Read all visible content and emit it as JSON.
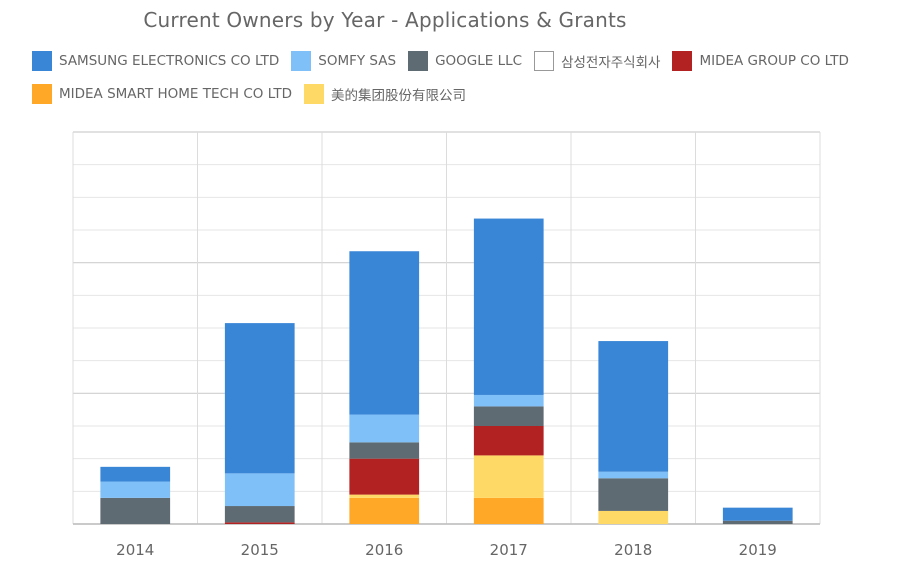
{
  "chart_data": {
    "type": "bar",
    "stacked": true,
    "title": "Current Owners by Year - Applications & Grants",
    "xlabel": "",
    "ylabel": "",
    "categories": [
      "2014",
      "2015",
      "2016",
      "2017",
      "2018",
      "2019"
    ],
    "ylim": [
      0,
      12
    ],
    "grid": true,
    "legend_position": "top",
    "series": [
      {
        "name": "MIDEA SMART HOME TECH CO LTD",
        "color": "#ffa726",
        "values": [
          0,
          0,
          0.8,
          0.8,
          0,
          0
        ]
      },
      {
        "name": "美的集团股份有限公司",
        "color": "#ffd966",
        "values": [
          0,
          0,
          0.1,
          1.3,
          0.4,
          0
        ]
      },
      {
        "name": "MIDEA GROUP CO LTD",
        "color": "#b22222",
        "values": [
          0,
          0.05,
          1.1,
          0.9,
          0,
          0
        ]
      },
      {
        "name": "GOOGLE LLC",
        "color": "#5f6b73",
        "values": [
          0.8,
          0.5,
          0.5,
          0.6,
          1.0,
          0.1
        ]
      },
      {
        "name": "삼성전자주식회사",
        "color": "#ffffff",
        "values": [
          0,
          0,
          0,
          0,
          0,
          0
        ]
      },
      {
        "name": "SOMFY SAS",
        "color": "#7ec0f7",
        "values": [
          0.5,
          1.0,
          0.85,
          0.35,
          0.2,
          0
        ]
      },
      {
        "name": "SAMSUNG ELECTRONICS CO LTD",
        "color": "#3a86d6",
        "values": [
          0.45,
          4.6,
          5.0,
          5.4,
          4.0,
          0.4
        ]
      }
    ]
  },
  "legend": {
    "rows": [
      [
        {
          "label": "SAMSUNG ELECTRONICS CO LTD",
          "color": "#3a86d6"
        },
        {
          "label": "SOMFY SAS",
          "color": "#7ec0f7"
        },
        {
          "label": "GOOGLE LLC",
          "color": "#5f6b73"
        },
        {
          "label": "삼성전자주식회사",
          "color": "#ffffff"
        },
        {
          "label": "MIDEA GROUP CO LTD",
          "color": "#b22222"
        }
      ],
      [
        {
          "label": "MIDEA SMART HOME TECH CO LTD",
          "color": "#ffa726"
        },
        {
          "label": "美的集团股份有限公司",
          "color": "#ffd966"
        }
      ]
    ]
  }
}
